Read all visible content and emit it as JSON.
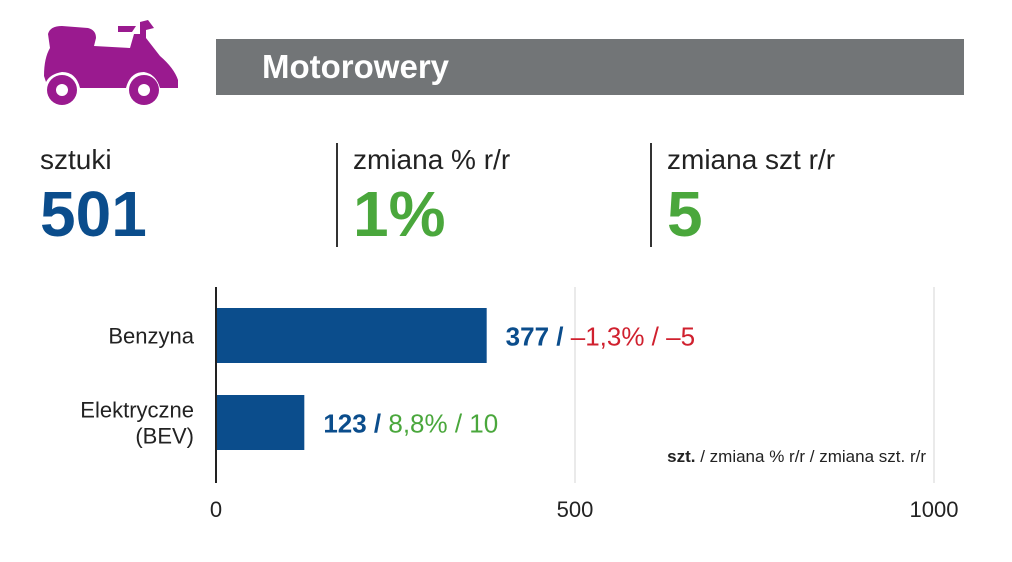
{
  "header": {
    "title": "Motorowery",
    "icon": "scooter-icon",
    "icon_color": "#9a1a8f"
  },
  "stats": [
    {
      "label": "sztuki",
      "value": "501",
      "color": "#0b4d8c"
    },
    {
      "label": "zmiana % r/r",
      "value": "1%",
      "color": "#4aa73c"
    },
    {
      "label": "zmiana szt r/r",
      "value": "5",
      "color": "#4aa73c"
    }
  ],
  "chart_data": {
    "type": "bar",
    "orientation": "horizontal",
    "categories": [
      [
        "Benzyna"
      ],
      [
        "Elektryczne",
        "(BEV)"
      ]
    ],
    "values": [
      377,
      123
    ],
    "bar_color": "#0b4d8c",
    "annotations": [
      {
        "count": "377",
        "sep": " / ",
        "rest": "–1,3% / –5",
        "rest_color": "#d0202e"
      },
      {
        "count": "123",
        "sep": " / ",
        "rest": "8,8% / 10",
        "rest_color": "#4aa73c"
      }
    ],
    "xlim": [
      0,
      1000
    ],
    "xticks": [
      "0",
      "500",
      "1000"
    ],
    "grid": true,
    "legend_note": {
      "bold": "szt.",
      "rest": " / zmiana % r/r / zmiana szt. r/r"
    }
  }
}
